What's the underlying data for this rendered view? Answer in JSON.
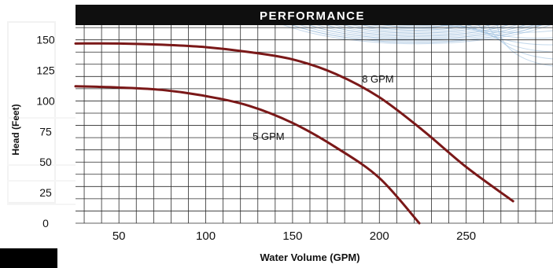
{
  "chart_data": {
    "type": "line",
    "title": "PERFORMANCE",
    "xlabel": "Water Volume (GPM)",
    "ylabel": "Head (Feet)",
    "xlim": [
      25,
      300
    ],
    "ylim": [
      0,
      162
    ],
    "x_ticks": [
      50,
      100,
      150,
      200,
      250
    ],
    "y_ticks": [
      0,
      25,
      50,
      75,
      100,
      125,
      150
    ],
    "grid": true,
    "series": [
      {
        "name": "8 GPM",
        "color": "#7a1818",
        "points": [
          [
            25,
            147
          ],
          [
            50,
            147
          ],
          [
            75,
            146
          ],
          [
            100,
            144
          ],
          [
            125,
            140
          ],
          [
            150,
            134
          ],
          [
            175,
            122
          ],
          [
            200,
            103
          ],
          [
            225,
            76
          ],
          [
            250,
            46
          ],
          [
            277,
            18
          ]
        ]
      },
      {
        "name": "5 GPM",
        "color": "#7a1818",
        "points": [
          [
            25,
            112
          ],
          [
            50,
            111
          ],
          [
            75,
            109
          ],
          [
            100,
            104
          ],
          [
            125,
            96
          ],
          [
            150,
            82
          ],
          [
            175,
            62
          ],
          [
            200,
            37
          ],
          [
            223,
            0
          ]
        ]
      }
    ],
    "annotations": [
      {
        "text": "8 GPM",
        "x": 190,
        "y": 115
      },
      {
        "text": "5 GPM",
        "x": 127,
        "y": 68
      }
    ]
  }
}
